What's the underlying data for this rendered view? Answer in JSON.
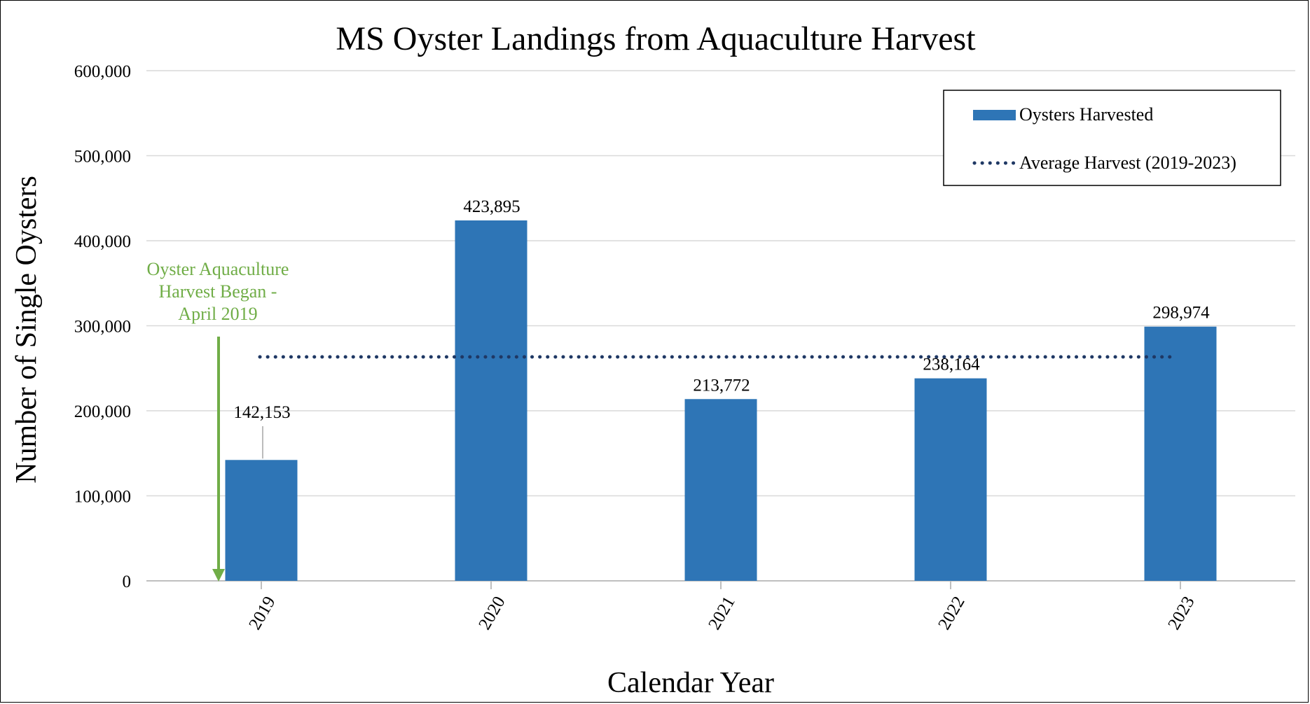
{
  "chart_data": {
    "type": "bar",
    "title": "MS Oyster Landings from Aquaculture Harvest",
    "xlabel": "Calendar Year",
    "ylabel": "Number of Single Oysters",
    "categories": [
      "2019",
      "2020",
      "2021",
      "2022",
      "2023"
    ],
    "series": [
      {
        "name": "Oysters Harvested",
        "type": "bar",
        "color": "#2E75B6",
        "values": [
          142153,
          423895,
          213772,
          238164,
          298974
        ],
        "data_labels": [
          "142,153",
          "423,895",
          "213,772",
          "238,164",
          "298,974"
        ]
      },
      {
        "name": "Average Harvest (2019-2023)",
        "type": "line",
        "style": "dotted",
        "color": "#1F3864",
        "value": 263392
      }
    ],
    "ylim": [
      0,
      600000
    ],
    "yticks": [
      0,
      100000,
      200000,
      300000,
      400000,
      500000,
      600000
    ],
    "ytick_labels": [
      "0",
      "100,000",
      "200,000",
      "300,000",
      "400,000",
      "500,000",
      "600,000"
    ],
    "grid": true,
    "legend_position": "top-right",
    "annotation": {
      "lines": [
        "Oyster Aquaculture",
        "Harvest Began -",
        "April 2019"
      ],
      "color": "#70AD47",
      "points_to": "2019"
    }
  }
}
